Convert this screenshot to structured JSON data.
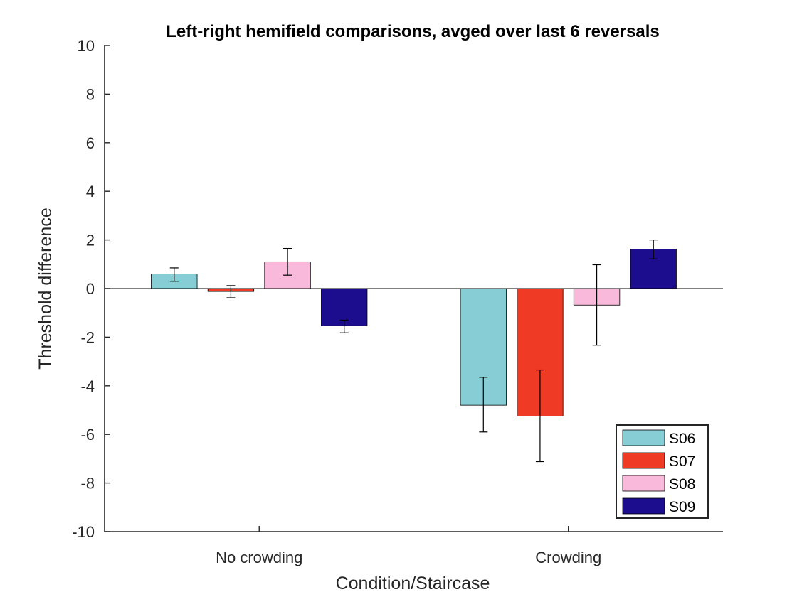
{
  "chart_data": {
    "type": "bar",
    "title": "Left-right hemifield comparisons, avged over last 6 reversals",
    "xlabel": "Condition/Staircase",
    "ylabel": "Threshold difference",
    "ylim": [
      -10,
      10
    ],
    "yticks": [
      -10,
      -8,
      -6,
      -4,
      -2,
      0,
      2,
      4,
      6,
      8,
      10
    ],
    "grid": false,
    "legend_position": "bottom-right",
    "categories": [
      "No crowding",
      "Crowding"
    ],
    "series": [
      {
        "name": "S06",
        "color": "#86CDD6",
        "values": [
          0.6,
          -4.8
        ],
        "error_low": [
          0.3,
          -5.9
        ],
        "error_high": [
          0.85,
          -3.65
        ]
      },
      {
        "name": "S07",
        "color": "#EF3A26",
        "values": [
          -0.12,
          -5.25
        ],
        "error_low": [
          -0.38,
          -7.12
        ],
        "error_high": [
          0.12,
          -3.35
        ]
      },
      {
        "name": "S08",
        "color": "#F8B9DA",
        "values": [
          1.1,
          -0.68
        ],
        "error_low": [
          0.55,
          -2.33
        ],
        "error_high": [
          1.65,
          0.98
        ]
      },
      {
        "name": "S09",
        "color": "#1B0D8D",
        "values": [
          -1.53,
          1.62
        ],
        "error_low": [
          -1.82,
          1.22
        ],
        "error_high": [
          -1.3,
          2.0
        ]
      }
    ]
  }
}
